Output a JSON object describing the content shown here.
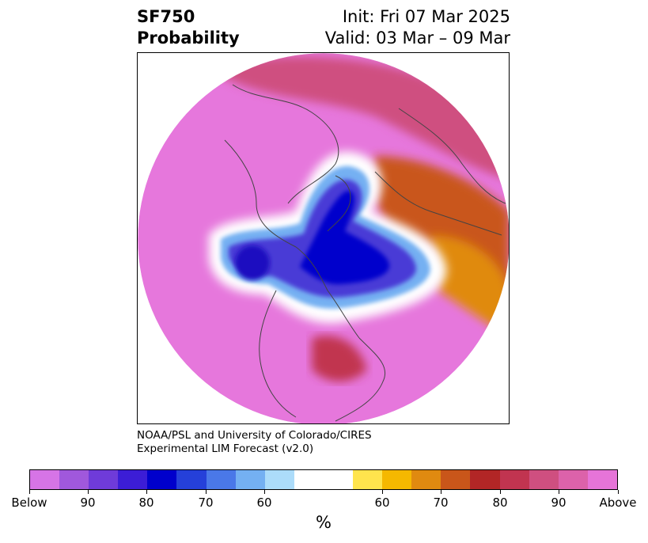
{
  "header": {
    "variable": "SF750",
    "product": "Probability",
    "init": "Init: Fri 07 Mar 2025",
    "valid": "Valid: 03 Mar – 09 Mar"
  },
  "credit": {
    "line1": "NOAA/PSL and University of Colorado/CIRES",
    "line2": "Experimental LIM Forecast (v2.0)"
  },
  "colorbar": {
    "colors": [
      "#d674e6",
      "#a058dc",
      "#6f3bd9",
      "#3c1dd6",
      "#0000cc",
      "#2540d9",
      "#4a78e8",
      "#74b0f2",
      "#acdcfa",
      "#ffffff",
      "#ffffff",
      "#ffe44d",
      "#f5b800",
      "#e08a10",
      "#c9561a",
      "#b22626",
      "#c13450",
      "#cf4f80",
      "#dc62aa",
      "#e674d8"
    ],
    "tick_labels": [
      "Below",
      "90",
      "80",
      "70",
      "60",
      "60",
      "70",
      "80",
      "90",
      "Above"
    ],
    "unit": "%"
  },
  "map": {
    "projection": "north-polar-stereographic",
    "background_color": "#e677dc",
    "anomaly_colors": {
      "strong_below": "#0000cc",
      "moderate_below": "#4a3ad6",
      "weak_below": "#74b0f2",
      "neutral": "#ffffff",
      "weak_above": "#f5b800",
      "moderate_above": "#c9561a",
      "strong_above": "#b22626"
    }
  }
}
